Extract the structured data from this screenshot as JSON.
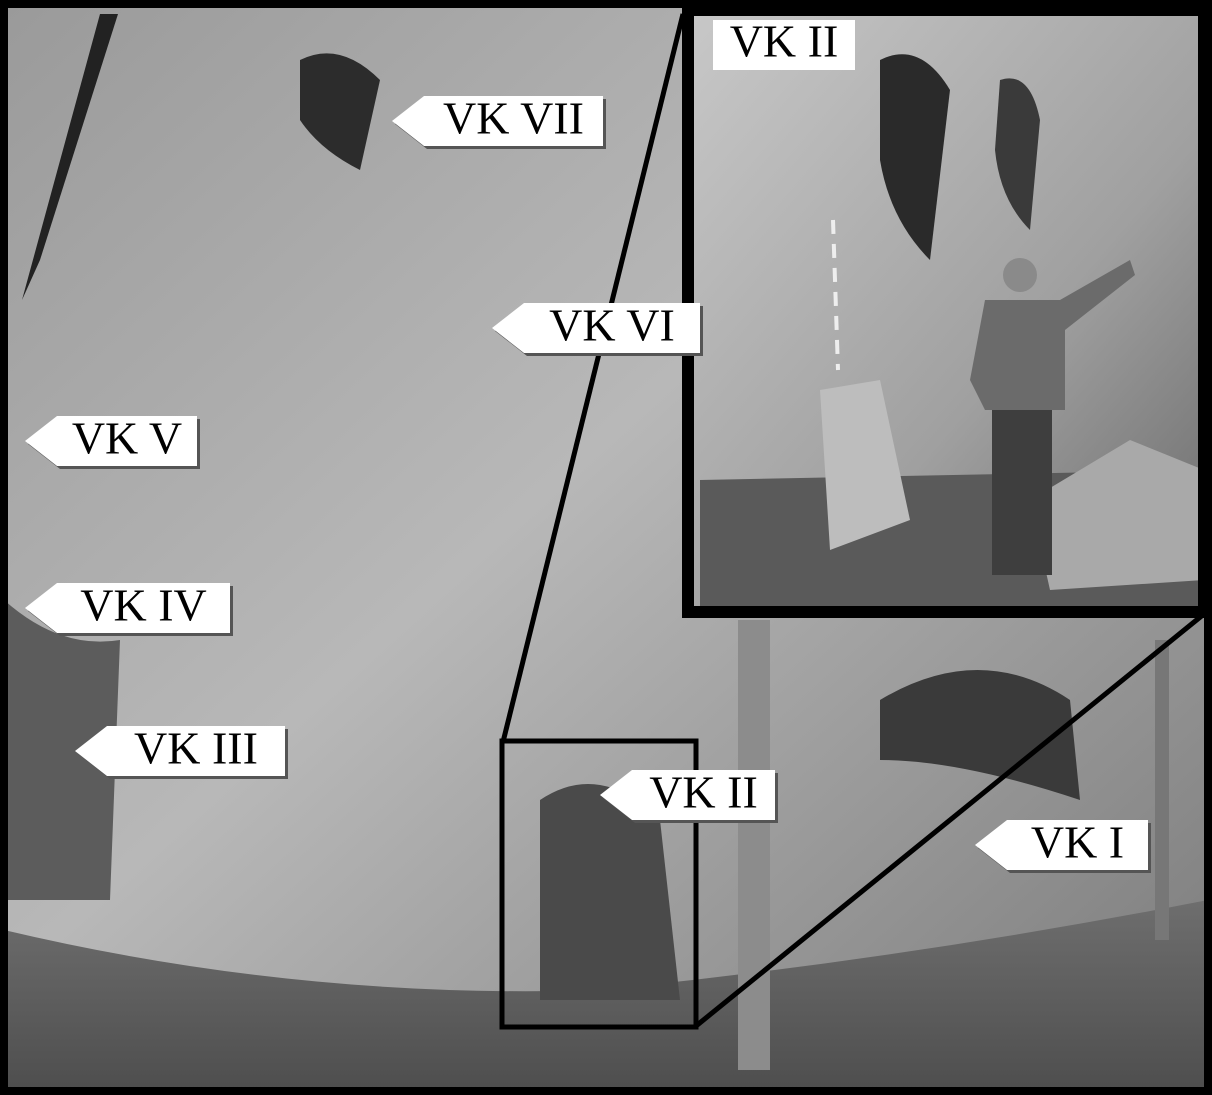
{
  "labels": [
    "VK VII",
    "VK VI",
    "VK V",
    "VK IV",
    "VK III",
    "VK II",
    "VK I"
  ],
  "inset": {
    "label": "VK II"
  }
}
